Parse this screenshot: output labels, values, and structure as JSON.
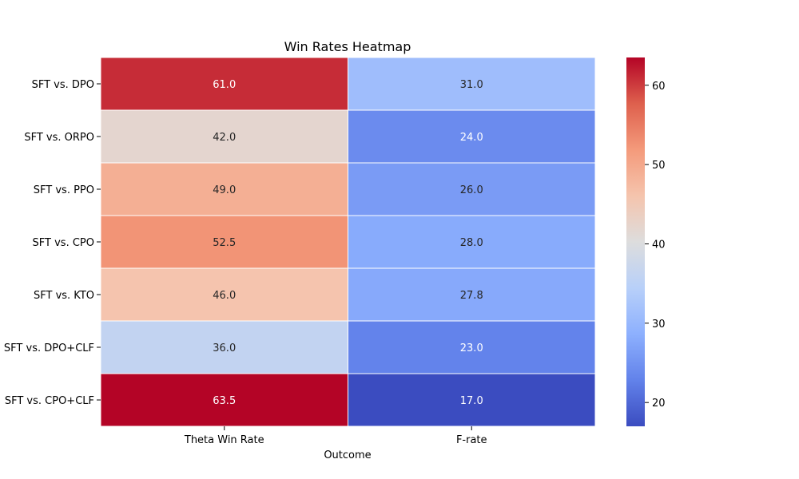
{
  "chart_data": {
    "type": "heatmap",
    "title": "Win Rates Heatmap",
    "xlabel": "Outcome",
    "ylabel": "",
    "columns": [
      "Theta Win Rate",
      "F-rate"
    ],
    "rows": [
      "SFT vs. DPO",
      "SFT vs. ORPO",
      "SFT vs. PPO",
      "SFT vs. CPO",
      "SFT vs. KTO",
      "SFT vs. DPO+CLF",
      "SFT vs. CPO+CLF"
    ],
    "values": [
      [
        61.0,
        31.0
      ],
      [
        42.0,
        24.0
      ],
      [
        49.0,
        26.0
      ],
      [
        52.5,
        28.0
      ],
      [
        46.0,
        27.8
      ],
      [
        36.0,
        23.0
      ],
      [
        63.5,
        17.0
      ]
    ],
    "value_format": "0.0",
    "colormap": "coolwarm",
    "color_range": [
      17.0,
      63.5
    ],
    "colorbar_ticks": [
      20,
      30,
      40,
      50,
      60
    ]
  }
}
